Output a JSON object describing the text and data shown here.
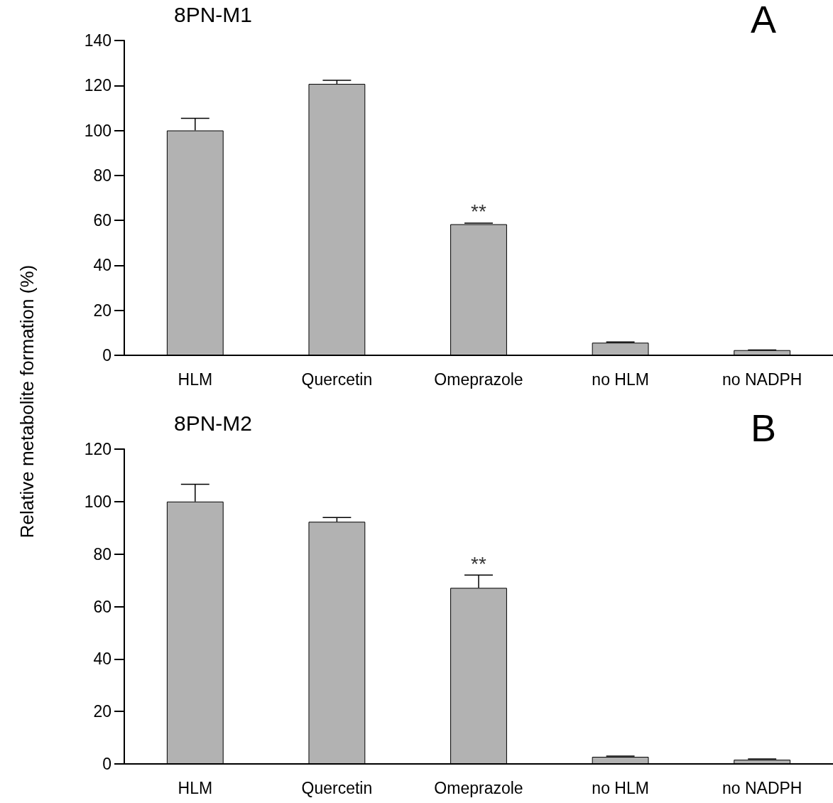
{
  "chart_data": [
    {
      "type": "bar",
      "title": "8PN-M1",
      "ylabel": "Relative metabolite formation (%)",
      "categories": [
        "HLM",
        "Quercetin",
        "Omeprazole",
        "no HLM",
        "no NADPH"
      ],
      "values": [
        100,
        120.7,
        58.3,
        5.6,
        2.3
      ],
      "errors": [
        [
          100,
          105.4
        ],
        [
          120.7,
          122.3
        ],
        [
          58.3,
          58.8
        ],
        [
          5.6,
          5.9
        ],
        [
          2.3,
          2.4
        ]
      ],
      "color": "#b2b2b2",
      "ylim": [
        0,
        140
      ],
      "yticks": [
        0,
        20,
        40,
        60,
        80,
        100,
        120,
        140
      ],
      "grid": false,
      "annotations": [
        "A",
        {
          "text": "**",
          "x": "Omeprazole",
          "y": 58.8
        }
      ]
    },
    {
      "type": "bar",
      "title": "8PN-M2",
      "categories": [
        "HLM",
        "Quercetin",
        "Omeprazole",
        "no HLM",
        "no NADPH"
      ],
      "values": [
        100,
        92.3,
        67.1,
        2.7,
        1.6
      ],
      "errors": [
        [
          100,
          106.6
        ],
        [
          92.3,
          93.9
        ],
        [
          67.1,
          72
        ],
        [
          2.7,
          3
        ],
        [
          1.6,
          1.9
        ]
      ],
      "color": "#b2b2b2",
      "ylim": [
        0,
        120
      ],
      "yticks": [
        0,
        20,
        40,
        60,
        80,
        100,
        120
      ],
      "grid": false,
      "annotations": [
        "B",
        {
          "text": "**",
          "x": "Omeprazole",
          "y": 72
        }
      ]
    }
  ]
}
